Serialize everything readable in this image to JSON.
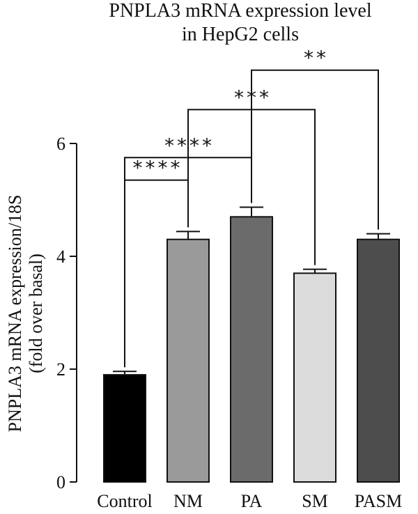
{
  "chart_data": {
    "type": "bar",
    "title_lines": [
      "PNPLA3 mRNA expression level",
      "in HepG2 cells"
    ],
    "ylabel_lines": [
      "PNPLA3 mRNA expression/18S",
      "(fold over basal)"
    ],
    "xlabel": "",
    "ylim": [
      0,
      6
    ],
    "yticks": [
      "0",
      "2",
      "4",
      "6"
    ],
    "categories": [
      "Control",
      "NM",
      "PA",
      "SM",
      "PASM"
    ],
    "values": [
      1.9,
      4.3,
      4.7,
      3.7,
      4.3
    ],
    "errors": [
      0.06,
      0.14,
      0.17,
      0.07,
      0.1
    ],
    "colors": [
      "#000000",
      "#9a9a9a",
      "#6b6b6b",
      "#dcdcdc",
      "#4d4d4d"
    ],
    "significance": [
      {
        "from": "Control",
        "to": "NM",
        "label": "****",
        "y": 5.35
      },
      {
        "from": "Control",
        "to": "PA",
        "label": "****",
        "y": 5.75
      },
      {
        "from": "NM",
        "to": "SM",
        "label": "***",
        "y": 6.6
      },
      {
        "from": "PA",
        "to": "PASM",
        "label": "**",
        "y": 7.3
      }
    ],
    "grid": false,
    "legend": "none"
  }
}
